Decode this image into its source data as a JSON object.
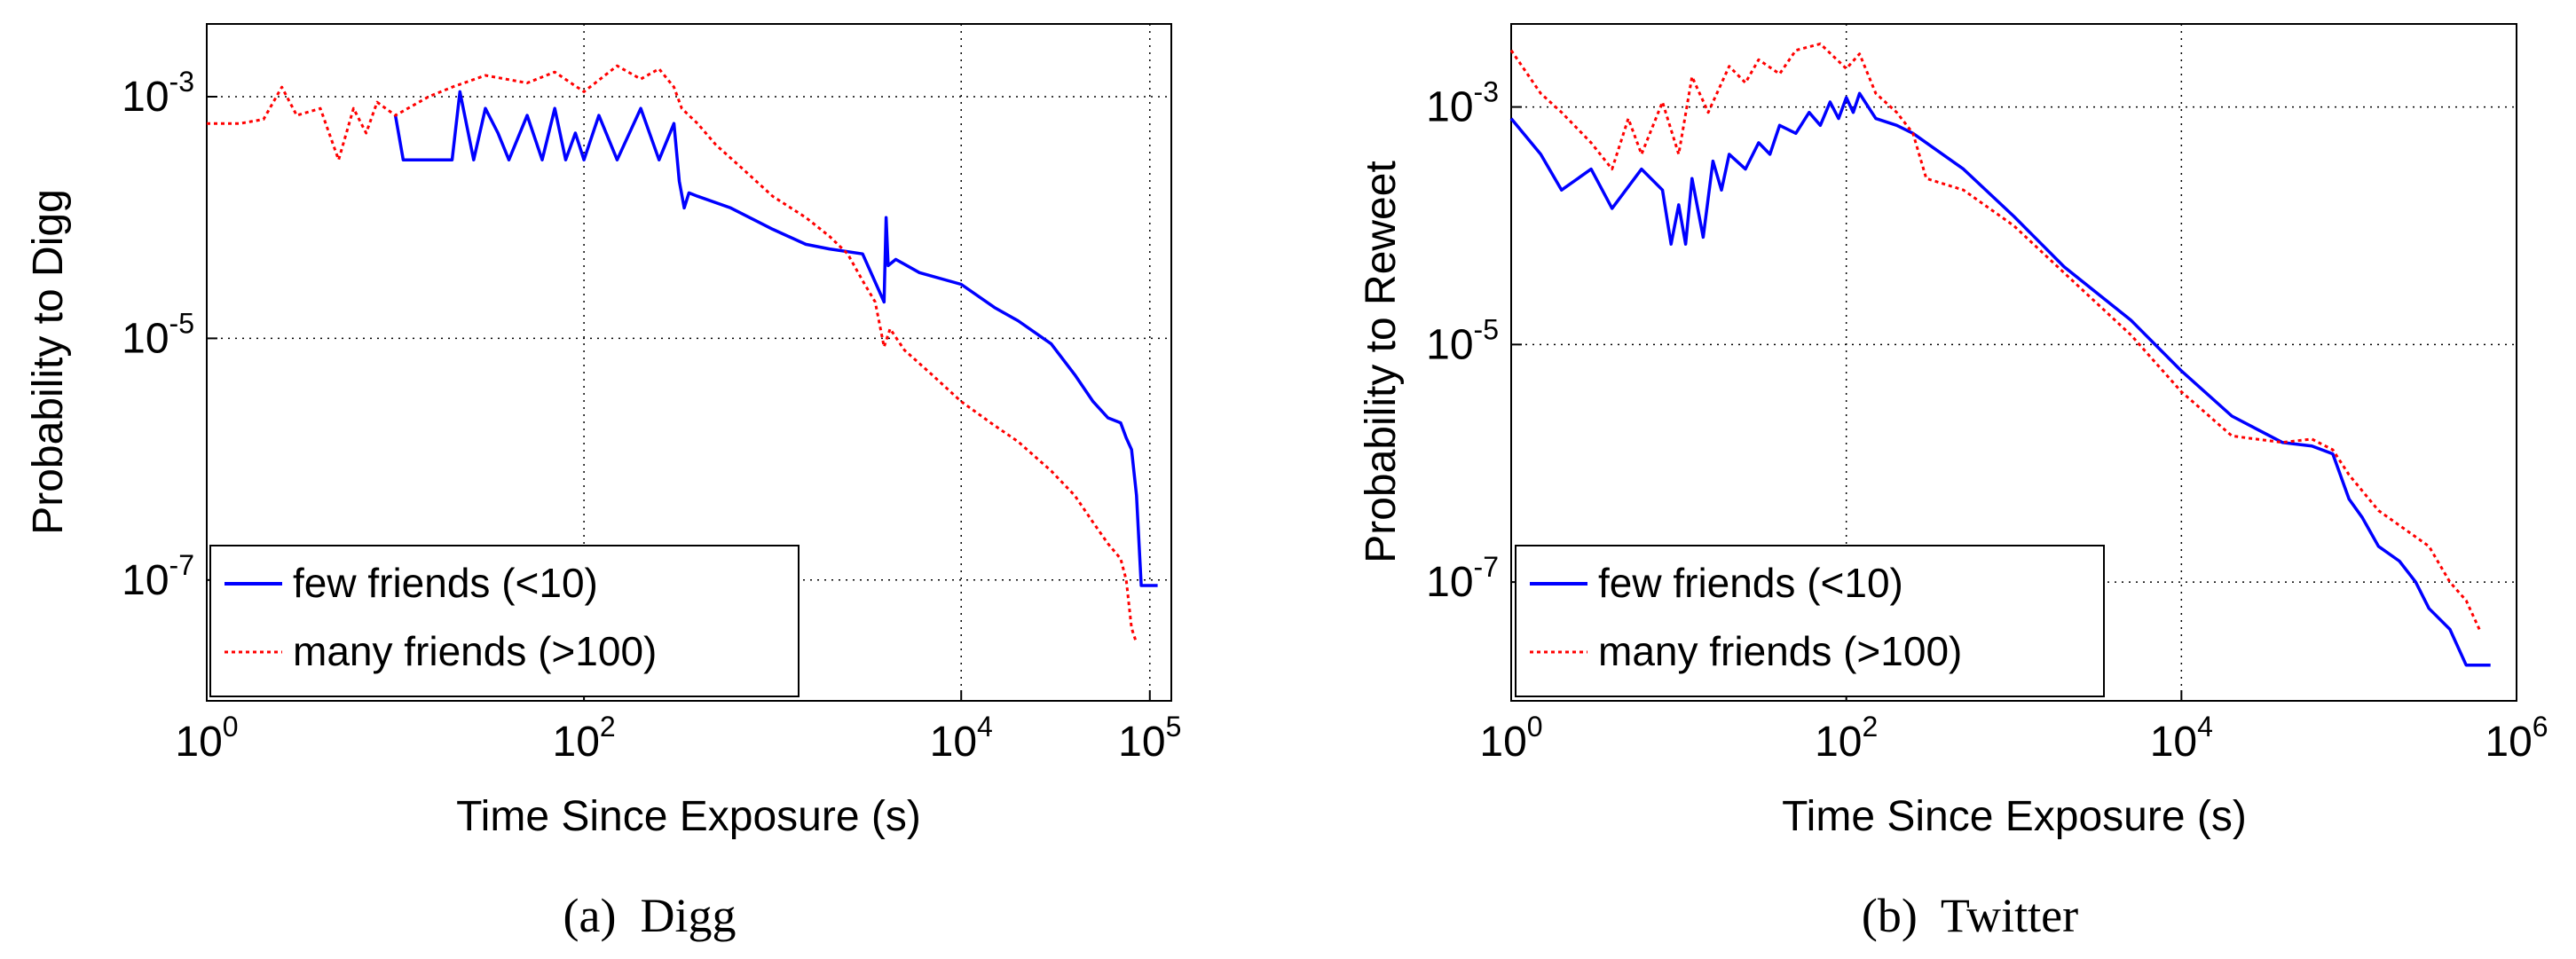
{
  "figure": {
    "captions": [
      "(a)  Digg",
      "(b)  Twitter"
    ]
  },
  "chart_data": [
    {
      "type": "line",
      "title": "",
      "caption": "(a)  Digg",
      "xlabel": "Time Since Exposure (s)",
      "ylabel": "Probability to Digg",
      "x_scale": "log",
      "y_scale": "log",
      "xlim": [
        1,
        130000
      ],
      "ylim": [
        1e-08,
        0.004
      ],
      "x_ticks": [
        {
          "value": 1,
          "base": "10",
          "exp": "0"
        },
        {
          "value": 100,
          "base": "10",
          "exp": "2"
        },
        {
          "value": 10000,
          "base": "10",
          "exp": "4"
        },
        {
          "value": 100000,
          "base": "10",
          "exp": "5"
        }
      ],
      "y_ticks": [
        {
          "value": 1e-07,
          "base": "10",
          "exp": "-7"
        },
        {
          "value": 1e-05,
          "base": "10",
          "exp": "-5"
        },
        {
          "value": 0.001,
          "base": "10",
          "exp": "-3"
        }
      ],
      "grid": true,
      "legend_position": "bottom-left",
      "series": [
        {
          "name": "few friends (<10)",
          "color": "#0000ff",
          "style": "solid",
          "x": [
            10,
            11,
            14,
            20,
            22,
            26,
            30,
            35,
            40,
            50,
            60,
            70,
            80,
            90,
            100,
            120,
            150,
            200,
            250,
            300,
            320,
            340,
            360,
            400,
            600,
            1000,
            1500,
            2000,
            3000,
            3900,
            4000,
            4100,
            4500,
            6000,
            10000,
            15000,
            20000,
            30000,
            40000,
            50000,
            60000,
            70000,
            75000,
            80000,
            85000,
            90000,
            100000,
            110000
          ],
          "y": [
            0.0007,
            0.0003,
            0.0003,
            0.0003,
            0.0011,
            0.0003,
            0.0008,
            0.0005,
            0.0003,
            0.0007,
            0.0003,
            0.0008,
            0.0003,
            0.0005,
            0.0003,
            0.0007,
            0.0003,
            0.0008,
            0.0003,
            0.0006,
            0.0002,
            0.00012,
            0.00016,
            0.00015,
            0.00012,
            8e-05,
            6e-05,
            5.5e-05,
            5e-05,
            2e-05,
            0.0001,
            4e-05,
            4.5e-05,
            3.5e-05,
            2.8e-05,
            1.8e-05,
            1.4e-05,
            9e-06,
            5e-06,
            3e-06,
            2.2e-06,
            2e-06,
            1.5e-06,
            1.2e-06,
            5e-07,
            9e-08,
            9e-08,
            9e-08
          ]
        },
        {
          "name": "many friends (>100)",
          "color": "#ff0000",
          "style": "dotted",
          "x": [
            1,
            1.5,
            2,
            2.5,
            3,
            4,
            5,
            6,
            7,
            8,
            10,
            15,
            20,
            30,
            50,
            70,
            100,
            150,
            200,
            250,
            300,
            330,
            360,
            400,
            500,
            700,
            1000,
            1500,
            2000,
            2500,
            3000,
            3500,
            3900,
            4200,
            5000,
            7000,
            10000,
            15000,
            20000,
            30000,
            40000,
            50000,
            60000,
            70000,
            75000,
            80000,
            85000
          ],
          "y": [
            0.0006,
            0.0006,
            0.00065,
            0.0012,
            0.0007,
            0.0008,
            0.0003,
            0.0008,
            0.0005,
            0.0009,
            0.0007,
            0.001,
            0.0012,
            0.0015,
            0.0013,
            0.0016,
            0.0011,
            0.0018,
            0.0014,
            0.0017,
            0.0012,
            0.0008,
            0.0007,
            0.0006,
            0.0004,
            0.00025,
            0.00015,
            0.0001,
            7e-05,
            5e-05,
            3e-05,
            2e-05,
            8.5e-06,
            1.2e-05,
            8e-06,
            5e-06,
            3e-06,
            1.9e-06,
            1.4e-06,
            8e-07,
            5e-07,
            3e-07,
            2e-07,
            1.5e-07,
            1e-07,
            4e-08,
            3e-08
          ]
        }
      ]
    },
    {
      "type": "line",
      "title": "",
      "caption": "(b)  Twitter",
      "xlabel": "Time Since Exposure (s)",
      "ylabel": "Probability to Reweet",
      "x_scale": "log",
      "y_scale": "log",
      "xlim": [
        1,
        1000000
      ],
      "ylim": [
        1e-08,
        0.005
      ],
      "x_ticks": [
        {
          "value": 1,
          "base": "10",
          "exp": "0"
        },
        {
          "value": 100,
          "base": "10",
          "exp": "2"
        },
        {
          "value": 10000,
          "base": "10",
          "exp": "4"
        },
        {
          "value": 1000000,
          "base": "10",
          "exp": "6"
        }
      ],
      "y_ticks": [
        {
          "value": 1e-07,
          "base": "10",
          "exp": "-7"
        },
        {
          "value": 1e-05,
          "base": "10",
          "exp": "-5"
        },
        {
          "value": 0.001,
          "base": "10",
          "exp": "-3"
        }
      ],
      "grid": true,
      "legend_position": "bottom-left",
      "series": [
        {
          "name": "few friends (<10)",
          "color": "#0000ff",
          "style": "solid",
          "x": [
            1,
            1.5,
            2,
            3,
            4,
            6,
            8,
            9,
            10,
            11,
            12,
            14,
            16,
            18,
            20,
            25,
            30,
            35,
            40,
            50,
            60,
            70,
            80,
            90,
            100,
            110,
            120,
            150,
            200,
            250,
            300,
            500,
            1000,
            2000,
            5000,
            10000,
            20000,
            40000,
            60000,
            80000,
            100000,
            120000,
            150000,
            200000,
            250000,
            300000,
            400000,
            500000,
            600000,
            700000
          ],
          "y": [
            0.0008,
            0.0004,
            0.0002,
            0.0003,
            0.00014,
            0.0003,
            0.0002,
            7e-05,
            0.00015,
            7e-05,
            0.00025,
            8e-05,
            0.00035,
            0.0002,
            0.0004,
            0.0003,
            0.0005,
            0.0004,
            0.0007,
            0.0006,
            0.0009,
            0.0007,
            0.0011,
            0.0008,
            0.0012,
            0.0009,
            0.0013,
            0.0008,
            0.0007,
            0.0006,
            0.0005,
            0.0003,
            0.00012,
            4.5e-05,
            1.6e-05,
            6e-06,
            2.5e-06,
            1.5e-06,
            1.4e-06,
            1.2e-06,
            5e-07,
            3.5e-07,
            2e-07,
            1.5e-07,
            1e-07,
            6e-08,
            4e-08,
            2e-08,
            2e-08,
            2e-08
          ]
        },
        {
          "name": "many friends (>100)",
          "color": "#ff0000",
          "style": "dotted",
          "x": [
            1,
            1.5,
            2,
            3,
            4,
            5,
            6,
            8,
            10,
            12,
            15,
            20,
            25,
            30,
            40,
            50,
            70,
            100,
            120,
            150,
            200,
            250,
            300,
            500,
            1000,
            2000,
            5000,
            10000,
            20000,
            40000,
            60000,
            80000,
            100000,
            150000,
            200000,
            300000,
            400000,
            500000,
            600000
          ],
          "y": [
            0.003,
            0.0013,
            0.0009,
            0.0005,
            0.0003,
            0.0008,
            0.0004,
            0.0011,
            0.0004,
            0.0018,
            0.0009,
            0.0022,
            0.0016,
            0.0025,
            0.0019,
            0.003,
            0.0034,
            0.0021,
            0.0028,
            0.0013,
            0.0009,
            0.0006,
            0.00025,
            0.0002,
            0.0001,
            4e-05,
            1.2e-05,
            4e-06,
            1.7e-06,
            1.5e-06,
            1.6e-06,
            1.3e-06,
            8e-07,
            4e-07,
            3e-07,
            2e-07,
            1e-07,
            7e-08,
            4e-08
          ]
        }
      ]
    }
  ]
}
